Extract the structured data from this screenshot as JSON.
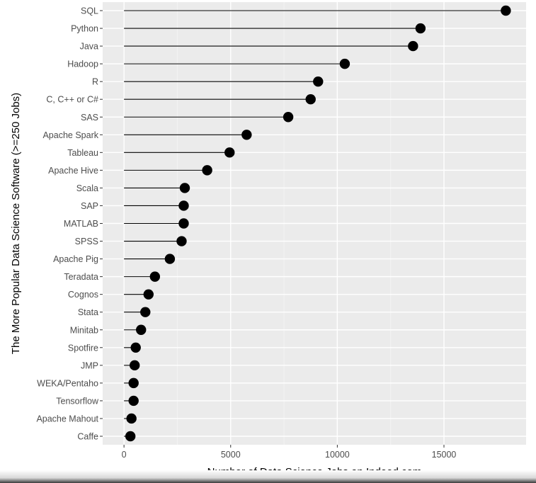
{
  "chart_data": {
    "type": "lollipop",
    "categories": [
      "SQL",
      "Python",
      "Java",
      "Hadoop",
      "R",
      "C, C++ or C#",
      "SAS",
      "Apache Spark",
      "Tableau",
      "Apache Hive",
      "Scala",
      "SAP",
      "MATLAB",
      "SPSS",
      "Apache Pig",
      "Teradata",
      "Cognos",
      "Stata",
      "Minitab",
      "Spotfire",
      "JMP",
      "WEKA/Pentaho",
      "Tensorflow",
      "Apache Mahout",
      "Caffe"
    ],
    "values": [
      17900,
      13900,
      13550,
      10350,
      9100,
      8750,
      7700,
      5750,
      4950,
      3900,
      2850,
      2800,
      2800,
      2700,
      2150,
      1450,
      1150,
      1000,
      800,
      550,
      500,
      450,
      450,
      350,
      300
    ],
    "title": "",
    "xlabel": "Number of Data Science Jobs on Indeed.com",
    "ylabel": "The More Popular Data Science Software (>=250 Jobs)",
    "xlim": [
      -1000,
      18850
    ],
    "xticks": [
      0,
      5000,
      10000,
      15000
    ],
    "xtick_labels": [
      "0",
      "5000",
      "10000",
      "15000"
    ],
    "grid": true,
    "colors": {
      "panel_background": "#ebebeb",
      "grid_major": "#ffffff",
      "grid_minor": "#f5f5f5",
      "mark": "#000000"
    }
  }
}
